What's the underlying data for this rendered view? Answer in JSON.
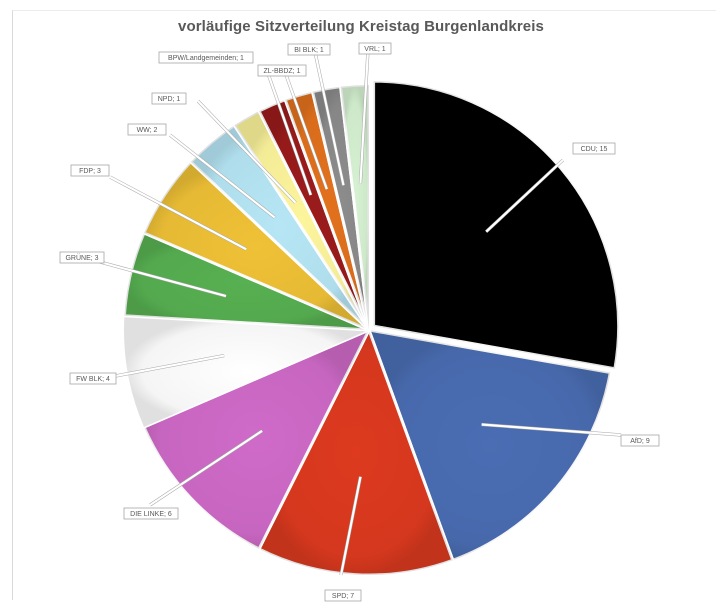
{
  "chart_data": {
    "type": "pie",
    "title": "vorläufige Sitzverteilung Kreistag Burgenlandkreis",
    "slices": [
      {
        "label": "CDU; 15",
        "name": "CDU",
        "value": 15,
        "color": "#000000"
      },
      {
        "label": "AfD; 9",
        "name": "AfD",
        "value": 9,
        "color": "#4a6db3"
      },
      {
        "label": "SPD; 7",
        "name": "SPD",
        "value": 7,
        "color": "#dd3a1f"
      },
      {
        "label": "DIE LINKE; 6",
        "name": "DIE LINKE",
        "value": 6,
        "color": "#cf6ac8"
      },
      {
        "label": "FW BLK; 4",
        "name": "FW BLK",
        "value": 4,
        "color": "#ffffff"
      },
      {
        "label": "GRÜNE; 3",
        "name": "GRÜNE",
        "value": 3,
        "color": "#57b051"
      },
      {
        "label": "FDP; 3",
        "name": "FDP",
        "value": 3,
        "color": "#efc136"
      },
      {
        "label": "WW; 2",
        "name": "WW",
        "value": 2,
        "color": "#b6e6f5"
      },
      {
        "label": "NPD; 1",
        "name": "NPD",
        "value": 1,
        "color": "#fdf59c"
      },
      {
        "label": "BPW/Landgemeinden; 1",
        "name": "BPW/Landgemeinden",
        "value": 1,
        "color": "#9b1b1b"
      },
      {
        "label": "ZL-BBDZ; 1",
        "name": "ZL-BBDZ",
        "value": 1,
        "color": "#e2711d"
      },
      {
        "label": "BI BLK; 1",
        "name": "BI BLK",
        "value": 1,
        "color": "#8c8c8c"
      },
      {
        "label": "VRL; 1",
        "name": "VRL",
        "value": 1,
        "color": "#d6f2d2"
      }
    ],
    "start_angle_deg": 0,
    "direction": "clockwise",
    "legend": "none"
  }
}
